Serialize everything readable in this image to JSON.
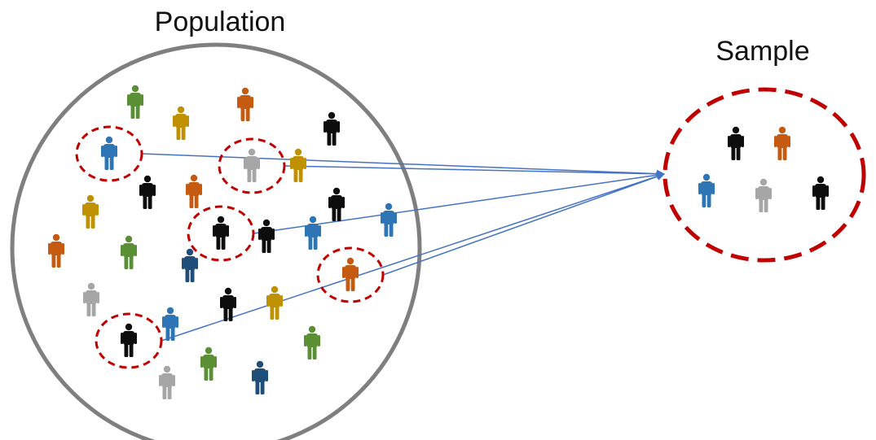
{
  "labels": {
    "population": "Population",
    "sample": "Sample"
  },
  "colors": {
    "green": "#5a8f35",
    "orange": "#c55a11",
    "gold": "#bf9000",
    "black": "#0d0d0d",
    "blue": "#2e75b6",
    "gray": "#a6a6a6",
    "navy": "#1f4e79",
    "circle": "#7f7f7f",
    "dashed": "#c00000",
    "arrow": "#4472c4"
  },
  "population_people": [
    {
      "color": "green"
    },
    {
      "color": "orange"
    },
    {
      "color": "gold"
    },
    {
      "color": "black"
    },
    {
      "color": "blue",
      "selected": true
    },
    {
      "color": "gray",
      "selected": true
    },
    {
      "color": "gold"
    },
    {
      "color": "black"
    },
    {
      "color": "orange"
    },
    {
      "color": "black"
    },
    {
      "color": "gold"
    },
    {
      "color": "black",
      "selected": true
    },
    {
      "color": "black"
    },
    {
      "color": "blue"
    },
    {
      "color": "blue"
    },
    {
      "color": "orange"
    },
    {
      "color": "green"
    },
    {
      "color": "navy"
    },
    {
      "color": "orange",
      "selected": true
    },
    {
      "color": "gray"
    },
    {
      "color": "black"
    },
    {
      "color": "gold"
    },
    {
      "color": "blue"
    },
    {
      "color": "black",
      "selected": true
    },
    {
      "color": "green"
    },
    {
      "color": "green"
    },
    {
      "color": "navy"
    },
    {
      "color": "gray"
    }
  ],
  "sample_people": [
    {
      "color": "black"
    },
    {
      "color": "orange"
    },
    {
      "color": "blue"
    },
    {
      "color": "gray"
    },
    {
      "color": "black"
    }
  ]
}
